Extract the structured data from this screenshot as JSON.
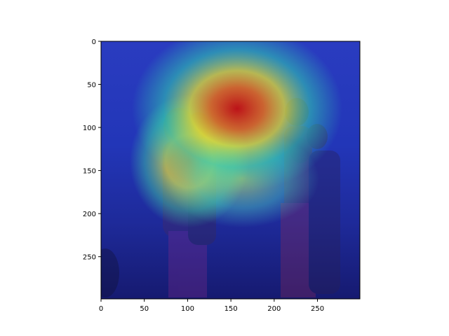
{
  "chart_data": {
    "type": "heatmap",
    "title": "",
    "xlabel": "",
    "ylabel": "",
    "description_role": "attention heatmap overlaid on photo",
    "xlim": [
      0,
      299
    ],
    "ylim": [
      299,
      0
    ],
    "x_ticks": [
      0,
      50,
      100,
      150,
      200,
      250
    ],
    "y_ticks": [
      0,
      50,
      100,
      150,
      200,
      250
    ],
    "grid": false,
    "colormap": "jet",
    "hotspots": [
      {
        "x": 160,
        "y": 80,
        "intensity": 1.0,
        "radius": 95
      },
      {
        "x": 100,
        "y": 140,
        "intensity": 0.75,
        "radius": 65
      },
      {
        "x": 205,
        "y": 170,
        "intensity": 0.45,
        "radius": 60
      }
    ],
    "colors": {
      "low": "#1b1bc8",
      "mid_low": "#20c8d0",
      "mid": "#e8e838",
      "mid_high": "#f08020",
      "high": "#c81818",
      "axes_edge": "#000000"
    }
  }
}
